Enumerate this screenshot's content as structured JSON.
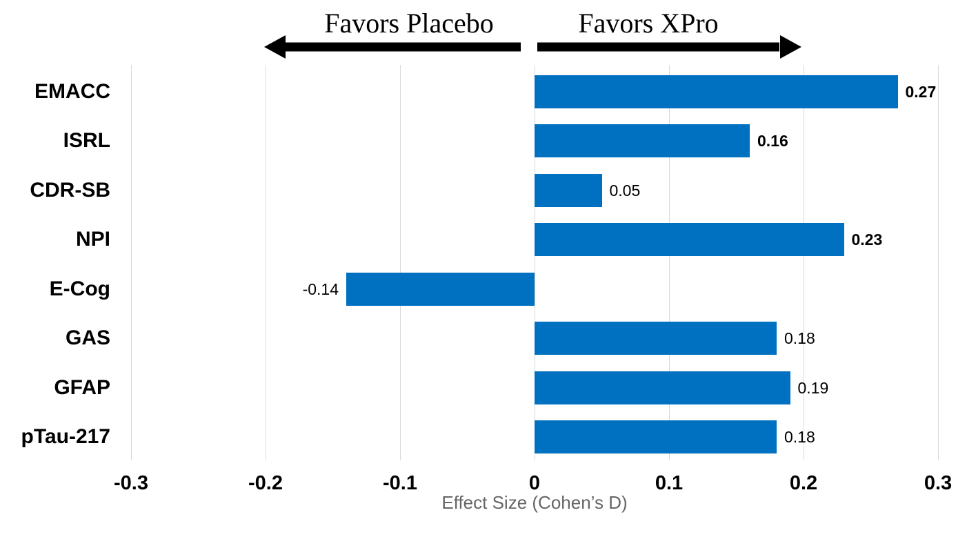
{
  "header": {
    "left_label": "Favors Placebo",
    "right_label": "Favors XPro"
  },
  "chart_data": {
    "type": "bar",
    "orientation": "horizontal",
    "title": "",
    "categories": [
      "EMACC",
      "ISRL",
      "CDR-SB",
      "NPI",
      "E-Cog",
      "GAS",
      "GFAP",
      "pTau-217"
    ],
    "values": [
      0.27,
      0.16,
      0.05,
      0.23,
      -0.14,
      0.18,
      0.19,
      0.18
    ],
    "value_labels": [
      "0.27",
      "0.16",
      "0.05",
      "0.23",
      "-0.14",
      "0.18",
      "0.19",
      "0.18"
    ],
    "value_label_bold": [
      true,
      true,
      false,
      true,
      false,
      false,
      false,
      false
    ],
    "xlabel": "Effect Size (Cohen’s D)",
    "ylabel": "",
    "x_ticks": [
      "-0.3",
      "-0.2",
      "-0.1",
      "0",
      "0.1",
      "0.2",
      "0.3"
    ],
    "x_tick_values": [
      -0.3,
      -0.2,
      -0.1,
      0,
      0.1,
      0.2,
      0.3
    ],
    "xlim": [
      -0.3,
      0.3
    ],
    "grid": "vertical-gridlines",
    "legend": "none",
    "annotations": [
      {
        "text": "Favors Placebo",
        "direction": "left"
      },
      {
        "text": "Favors XPro",
        "direction": "right"
      }
    ],
    "colors": {
      "bar": "#0070c0",
      "gridline": "#d9d9d9",
      "labels": "#000000",
      "axis_title": "#666666",
      "arrow": "#000000"
    }
  }
}
